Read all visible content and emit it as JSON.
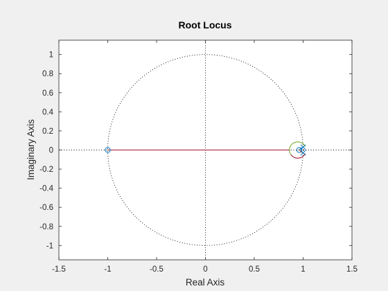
{
  "chart_data": {
    "type": "line",
    "title": "Root Locus",
    "xlabel": "Real Axis",
    "ylabel": "Imaginary Axis",
    "xlim": [
      -1.5,
      1.5
    ],
    "ylim": [
      -1.15,
      1.15
    ],
    "xticks": [
      -1.5,
      -1,
      -0.5,
      0,
      0.5,
      1,
      1.5
    ],
    "xtick_labels": [
      "-1.5",
      "-1",
      "-0.5",
      "0",
      "0.5",
      "1",
      "1.5"
    ],
    "yticks": [
      1,
      0.8,
      0.6,
      0.4,
      0.2,
      0,
      -0.2,
      -0.4,
      -0.6,
      -0.8,
      -1
    ],
    "ytick_labels": [
      "1",
      "0.8",
      "0.6",
      "0.4",
      "0.2",
      "0",
      "-0.2",
      "-0.4",
      "-0.6",
      "-0.8",
      "-1"
    ],
    "grid": false,
    "unit_circle": true,
    "zeros": [
      [
        -1,
        0
      ],
      [
        0.96,
        0
      ]
    ],
    "poles": [
      [
        1.0,
        0.03
      ],
      [
        1.0,
        -0.03
      ]
    ],
    "branches": [
      {
        "color": "#0072bd",
        "points": [
          [
            1.0,
            0.03
          ],
          [
            0.98,
            0.02
          ],
          [
            0.96,
            0
          ]
        ]
      },
      {
        "color": "#d95319",
        "points": [
          [
            1.0,
            -0.03
          ],
          [
            0.98,
            -0.02
          ],
          [
            0.96,
            0
          ]
        ]
      },
      {
        "color": "#77ac30",
        "center": [
          0.945,
          0
        ],
        "radius": 0.085,
        "arc_deg": [
          25,
          215
        ]
      },
      {
        "color": "#a2142f",
        "center": [
          0.945,
          0
        ],
        "radius": 0.085,
        "arc_deg": [
          215,
          335
        ]
      },
      {
        "color": "#a2142f",
        "points": [
          [
            0.86,
            0
          ],
          [
            -1,
            0
          ]
        ]
      }
    ],
    "colors": {
      "axes_bg": "#ffffff",
      "figure_bg": "#f0f0f0",
      "axis": "#262626",
      "zero_marker": "#0072bd",
      "pole_marker": "#0072bd",
      "circle": "#000000"
    }
  }
}
